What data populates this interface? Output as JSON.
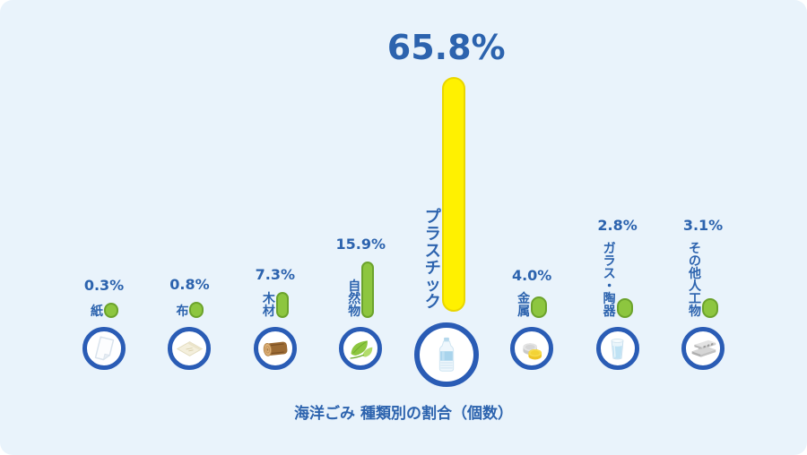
{
  "colors": {
    "background": "#e9f3fb",
    "text_blue": "#2c63ae",
    "circle_border": "#2a5cb5",
    "bar_green_fill": "#8dc63f",
    "bar_green_border": "#6ca32c",
    "bar_yellow_fill": "#fff100",
    "bar_yellow_border": "#e9d600"
  },
  "chart_data": {
    "type": "bar",
    "title": "海洋ごみ 種類別の割合（個数）",
    "orientation": "vertical",
    "value_unit": "%",
    "legend": "none",
    "grid": "off",
    "categories": [
      "紙",
      "布",
      "木材",
      "自然物",
      "プラスチック",
      "金属",
      "ガラス・陶器",
      "その他人工物"
    ],
    "values": [
      0.3,
      0.8,
      7.3,
      15.9,
      65.8,
      4.0,
      2.8,
      3.1
    ],
    "value_labels": [
      "0.3%",
      "0.8%",
      "7.3%",
      "15.9%",
      "65.8%",
      "4.0%",
      "2.8%",
      "3.1%"
    ],
    "highlight_index": 4,
    "bar_colors": {
      "default_fill": "#8dc63f",
      "default_border": "#6ca32c",
      "highlight_fill": "#fff100",
      "highlight_border": "#e9d600"
    },
    "columns": [
      {
        "label": "紙",
        "value": 0.3,
        "value_label": "0.3%",
        "icon": "paper-icon"
      },
      {
        "label": "布",
        "value": 0.8,
        "value_label": "0.8%",
        "icon": "cloth-icon"
      },
      {
        "label": "木材",
        "value": 7.3,
        "value_label": "7.3%",
        "icon": "log-icon"
      },
      {
        "label": "自然物",
        "value": 15.9,
        "value_label": "15.9%",
        "icon": "leaves-icon"
      },
      {
        "label": "プラスチック",
        "value": 65.8,
        "value_label": "65.8%",
        "icon": "plastic-bottle-icon",
        "highlight": true
      },
      {
        "label": "金属",
        "value": 4.0,
        "value_label": "4.0%",
        "icon": "metal-caps-icon"
      },
      {
        "label": "ガラス・陶器",
        "value": 2.8,
        "value_label": "2.8%",
        "icon": "glass-cup-icon"
      },
      {
        "label": "その他人工物",
        "value": 3.1,
        "value_label": "3.1%",
        "icon": "concrete-block-icon"
      }
    ]
  }
}
